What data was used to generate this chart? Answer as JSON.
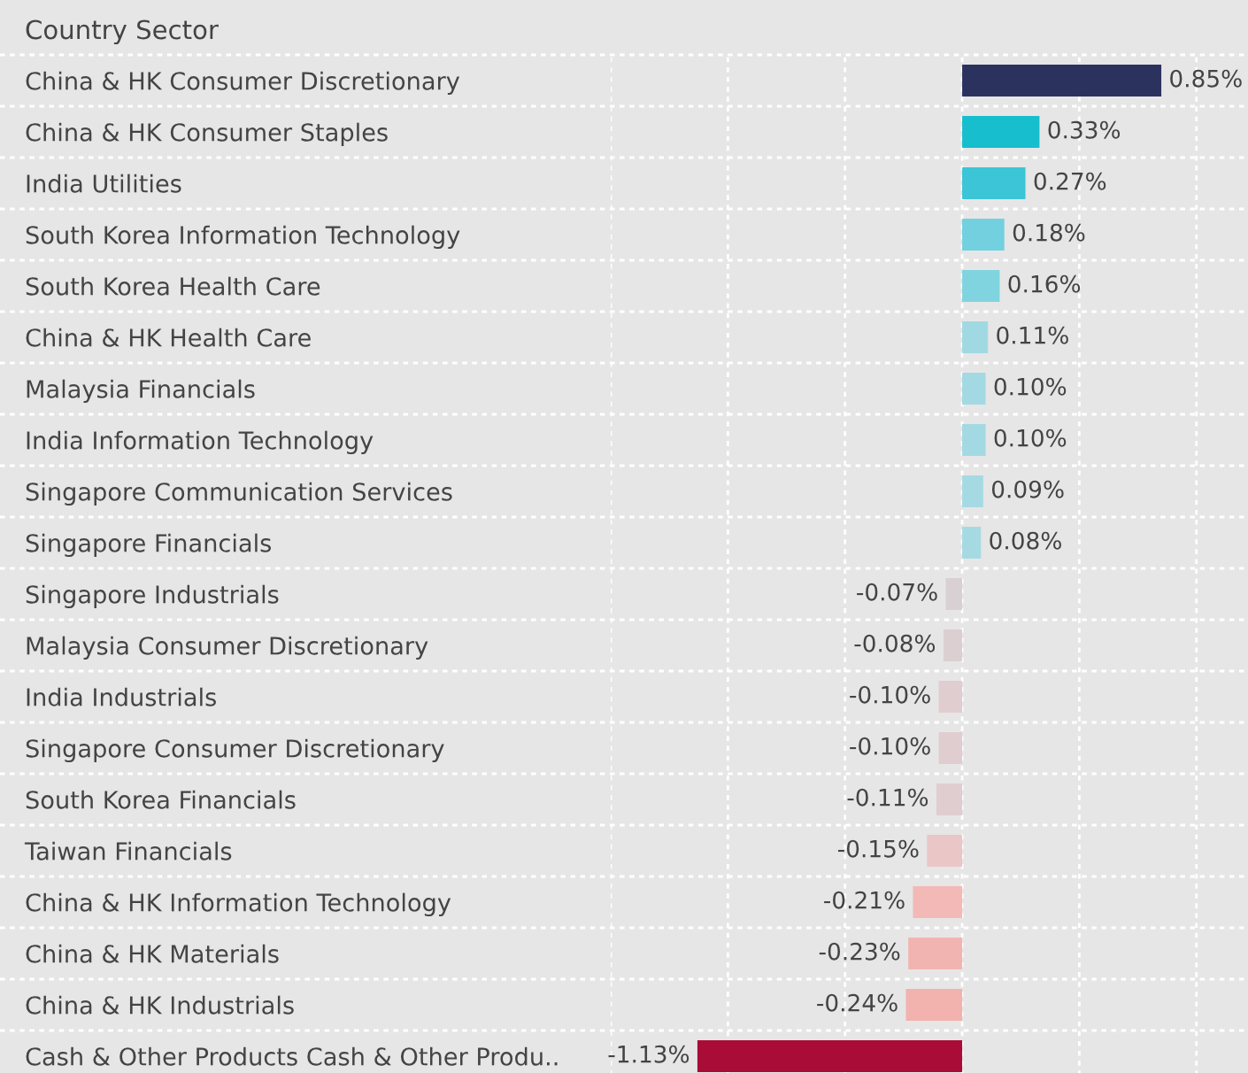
{
  "chart_data": {
    "type": "bar",
    "orientation": "horizontal",
    "title": "Country Sector",
    "categories": [
      "China & HK Consumer Discretionary",
      "China & HK Consumer Staples",
      "India Utilities",
      "South Korea Information Technology",
      "South Korea Health Care",
      "China & HK Health Care",
      "Malaysia Financials",
      "India Information Technology",
      "Singapore Communication Services",
      "Singapore Financials",
      "Singapore Industrials",
      "Malaysia Consumer Discretionary",
      "India Industrials",
      "Singapore Consumer Discretionary",
      "South Korea Financials",
      "Taiwan Financials",
      "China & HK Information Technology",
      "China & HK Materials",
      "China & HK Industrials",
      "Cash & Other Products Cash & Other Produ.."
    ],
    "values": [
      0.85,
      0.33,
      0.27,
      0.18,
      0.16,
      0.11,
      0.1,
      0.1,
      0.09,
      0.08,
      -0.07,
      -0.08,
      -0.1,
      -0.1,
      -0.11,
      -0.15,
      -0.21,
      -0.23,
      -0.24,
      -1.13
    ],
    "colors": [
      "#2c325e",
      "#17bece",
      "#3bc5d6",
      "#72d0df",
      "#80d4e0",
      "#a1d9e3",
      "#a3d9e3",
      "#a3d9e3",
      "#a6dae3",
      "#a6dae3",
      "#d9d0d3",
      "#dbcfd2",
      "#e0cdd0",
      "#e0cdd0",
      "#e0cdd0",
      "#ebc6c6",
      "#f2b9b6",
      "#f2b4b0",
      "#f2b2ae",
      "#a80c37"
    ],
    "value_labels": [
      "0.85%",
      "0.33%",
      "0.27%",
      "0.18%",
      "0.16%",
      "0.11%",
      "0.10%",
      "0.10%",
      "0.09%",
      "0.08%",
      "-0.07%",
      "-0.08%",
      "-0.10%",
      "-0.10%",
      "-0.11%",
      "-0.15%",
      "-0.21%",
      "-0.23%",
      "-0.24%",
      "-1.13%"
    ],
    "xlim": [
      -1.5,
      1.22
    ],
    "xticks": [
      {
        "value": -1.5,
        "label": null
      },
      {
        "value": -1.0,
        "label": null
      },
      {
        "value": -0.5,
        "label": null
      },
      {
        "value": 0,
        "label": null
      },
      {
        "value": 0.5,
        "label": null
      },
      {
        "value": 1.0,
        "label": null
      }
    ],
    "grid": true,
    "tick_labels": "y",
    "legend": false
  }
}
